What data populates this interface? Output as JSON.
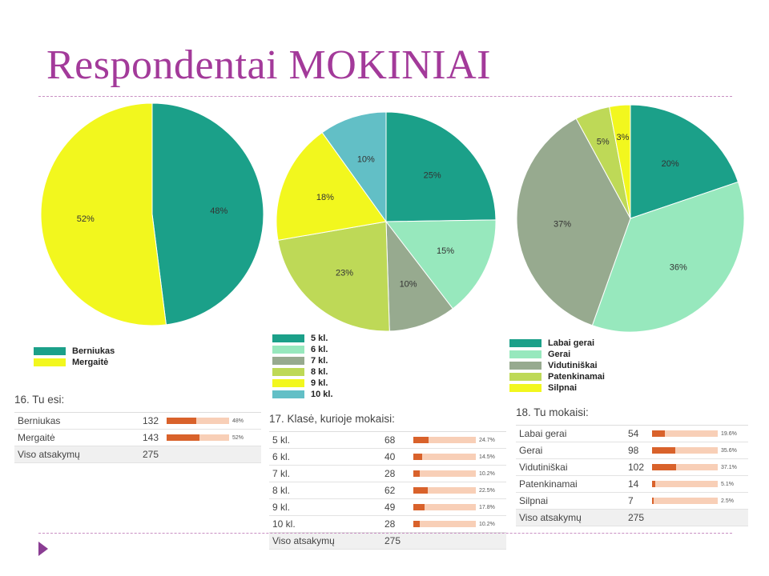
{
  "slide": {
    "title": "Respondentai MOKINIAI"
  },
  "chart_data": [
    {
      "type": "pie",
      "slices": [
        {
          "label": "Berniukas",
          "value": 48,
          "display": "48%",
          "color": "#1ba089"
        },
        {
          "label": "Mergaitė",
          "value": 52,
          "display": "52%",
          "color": "#f2f71e"
        }
      ]
    },
    {
      "type": "pie",
      "slices": [
        {
          "label": "5 kl.",
          "value": 25,
          "display": "25%",
          "color": "#1ba089"
        },
        {
          "label": "6 kl.",
          "value": 15,
          "display": "15%",
          "color": "#97e8bd"
        },
        {
          "label": "7 kl.",
          "value": 10,
          "display": "10%",
          "color": "#97aa8f"
        },
        {
          "label": "8 kl.",
          "value": 23,
          "display": "23%",
          "color": "#bed957"
        },
        {
          "label": "9 kl.",
          "value": 18,
          "display": "18%",
          "color": "#f2f71e"
        },
        {
          "label": "10 kl.",
          "value": 10,
          "display": "10%",
          "color": "#62bfc6"
        }
      ]
    },
    {
      "type": "pie",
      "slices": [
        {
          "label": "Labai gerai",
          "value": 20,
          "display": "20%",
          "color": "#1ba089"
        },
        {
          "label": "Gerai",
          "value": 36,
          "display": "36%",
          "color": "#97e8bd"
        },
        {
          "label": "Vidutiniškai",
          "value": 37,
          "display": "37%",
          "color": "#97aa8f"
        },
        {
          "label": "Patenkinamai",
          "value": 5,
          "display": "5%",
          "color": "#bed957"
        },
        {
          "label": "Silpnai",
          "value": 3,
          "display": "3%",
          "color": "#f2f71e"
        }
      ]
    }
  ],
  "tables": [
    {
      "title": "16. Tu esi:",
      "rows": [
        {
          "label": "Berniukas",
          "count": "132",
          "value": 48,
          "pct": "48%"
        },
        {
          "label": "Mergaitė",
          "count": "143",
          "value": 52,
          "pct": "52%"
        }
      ],
      "total": {
        "label": "Viso atsakymų",
        "count": "275"
      }
    },
    {
      "title": "17. Klasė, kurioje mokaisi:",
      "rows": [
        {
          "label": "5 kl.",
          "count": "68",
          "value": 24.7,
          "pct": "24.7%"
        },
        {
          "label": "6 kl.",
          "count": "40",
          "value": 14.5,
          "pct": "14.5%"
        },
        {
          "label": "7 kl.",
          "count": "28",
          "value": 10.2,
          "pct": "10.2%"
        },
        {
          "label": "8 kl.",
          "count": "62",
          "value": 22.5,
          "pct": "22.5%"
        },
        {
          "label": "9 kl.",
          "count": "49",
          "value": 17.8,
          "pct": "17.8%"
        },
        {
          "label": "10 kl.",
          "count": "28",
          "value": 10.2,
          "pct": "10.2%"
        }
      ],
      "total": {
        "label": "Viso atsakymų",
        "count": "275"
      }
    },
    {
      "title": "18. Tu mokaisi:",
      "rows": [
        {
          "label": "Labai gerai",
          "count": "54",
          "value": 19.6,
          "pct": "19.6%"
        },
        {
          "label": "Gerai",
          "count": "98",
          "value": 35.6,
          "pct": "35.6%"
        },
        {
          "label": "Vidutiniškai",
          "count": "102",
          "value": 37.1,
          "pct": "37.1%"
        },
        {
          "label": "Patenkinamai",
          "count": "14",
          "value": 5.1,
          "pct": "5.1%"
        },
        {
          "label": "Silpnai",
          "count": "7",
          "value": 2.5,
          "pct": "2.5%"
        }
      ],
      "total": {
        "label": "Viso atsakymų",
        "count": "275"
      }
    }
  ]
}
